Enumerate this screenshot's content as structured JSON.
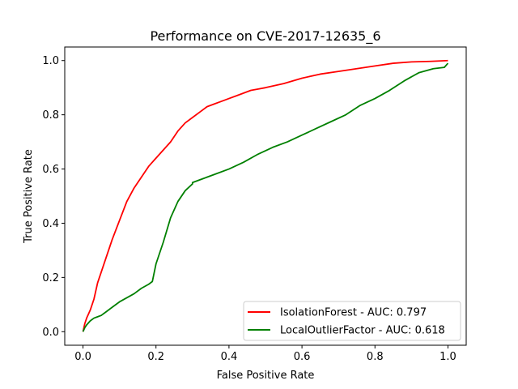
{
  "chart_data": {
    "type": "line",
    "title": "Performance on CVE-2017-12635_6",
    "xlabel": "False Positive Rate",
    "ylabel": "True Positive Rate",
    "xlim": [
      -0.05,
      1.05
    ],
    "ylim": [
      -0.05,
      1.05
    ],
    "xticks": [
      0.0,
      0.2,
      0.4,
      0.6,
      0.8,
      1.0
    ],
    "yticks": [
      0.0,
      0.2,
      0.4,
      0.6,
      0.8,
      1.0
    ],
    "xtick_labels": [
      "0.0",
      "0.2",
      "0.4",
      "0.6",
      "0.8",
      "1.0"
    ],
    "ytick_labels": [
      "0.0",
      "0.2",
      "0.4",
      "0.6",
      "0.8",
      "1.0"
    ],
    "grid": false,
    "legend_position": "lower-right",
    "series": [
      {
        "name": "IsolationForest - AUC: 0.797",
        "color": "#ff0000",
        "x": [
          0.0,
          0.005,
          0.01,
          0.02,
          0.03,
          0.04,
          0.05,
          0.06,
          0.07,
          0.08,
          0.1,
          0.12,
          0.14,
          0.16,
          0.18,
          0.2,
          0.22,
          0.24,
          0.26,
          0.28,
          0.3,
          0.32,
          0.34,
          0.36,
          0.38,
          0.4,
          0.42,
          0.44,
          0.46,
          0.48,
          0.5,
          0.55,
          0.6,
          0.65,
          0.7,
          0.75,
          0.8,
          0.85,
          0.9,
          0.95,
          1.0
        ],
        "y": [
          0.0,
          0.03,
          0.05,
          0.08,
          0.12,
          0.18,
          0.22,
          0.26,
          0.3,
          0.34,
          0.41,
          0.48,
          0.53,
          0.57,
          0.61,
          0.64,
          0.67,
          0.7,
          0.74,
          0.77,
          0.79,
          0.81,
          0.83,
          0.84,
          0.85,
          0.86,
          0.87,
          0.88,
          0.89,
          0.895,
          0.9,
          0.915,
          0.935,
          0.95,
          0.96,
          0.97,
          0.98,
          0.99,
          0.995,
          0.997,
          1.0
        ]
      },
      {
        "name": "LocalOutlierFactor - AUC: 0.618",
        "color": "#008000",
        "x": [
          0.0,
          0.005,
          0.01,
          0.02,
          0.03,
          0.04,
          0.05,
          0.06,
          0.08,
          0.1,
          0.12,
          0.14,
          0.16,
          0.18,
          0.19,
          0.2,
          0.22,
          0.24,
          0.26,
          0.28,
          0.3,
          0.3,
          0.33,
          0.36,
          0.4,
          0.44,
          0.48,
          0.52,
          0.56,
          0.6,
          0.64,
          0.68,
          0.72,
          0.76,
          0.8,
          0.84,
          0.88,
          0.92,
          0.96,
          0.99,
          1.0
        ],
        "y": [
          0.0,
          0.015,
          0.025,
          0.04,
          0.05,
          0.055,
          0.06,
          0.07,
          0.09,
          0.11,
          0.125,
          0.14,
          0.16,
          0.175,
          0.185,
          0.25,
          0.33,
          0.42,
          0.48,
          0.52,
          0.545,
          0.55,
          0.565,
          0.58,
          0.6,
          0.625,
          0.655,
          0.68,
          0.7,
          0.725,
          0.75,
          0.775,
          0.8,
          0.835,
          0.86,
          0.89,
          0.925,
          0.955,
          0.97,
          0.975,
          0.99
        ]
      }
    ]
  }
}
